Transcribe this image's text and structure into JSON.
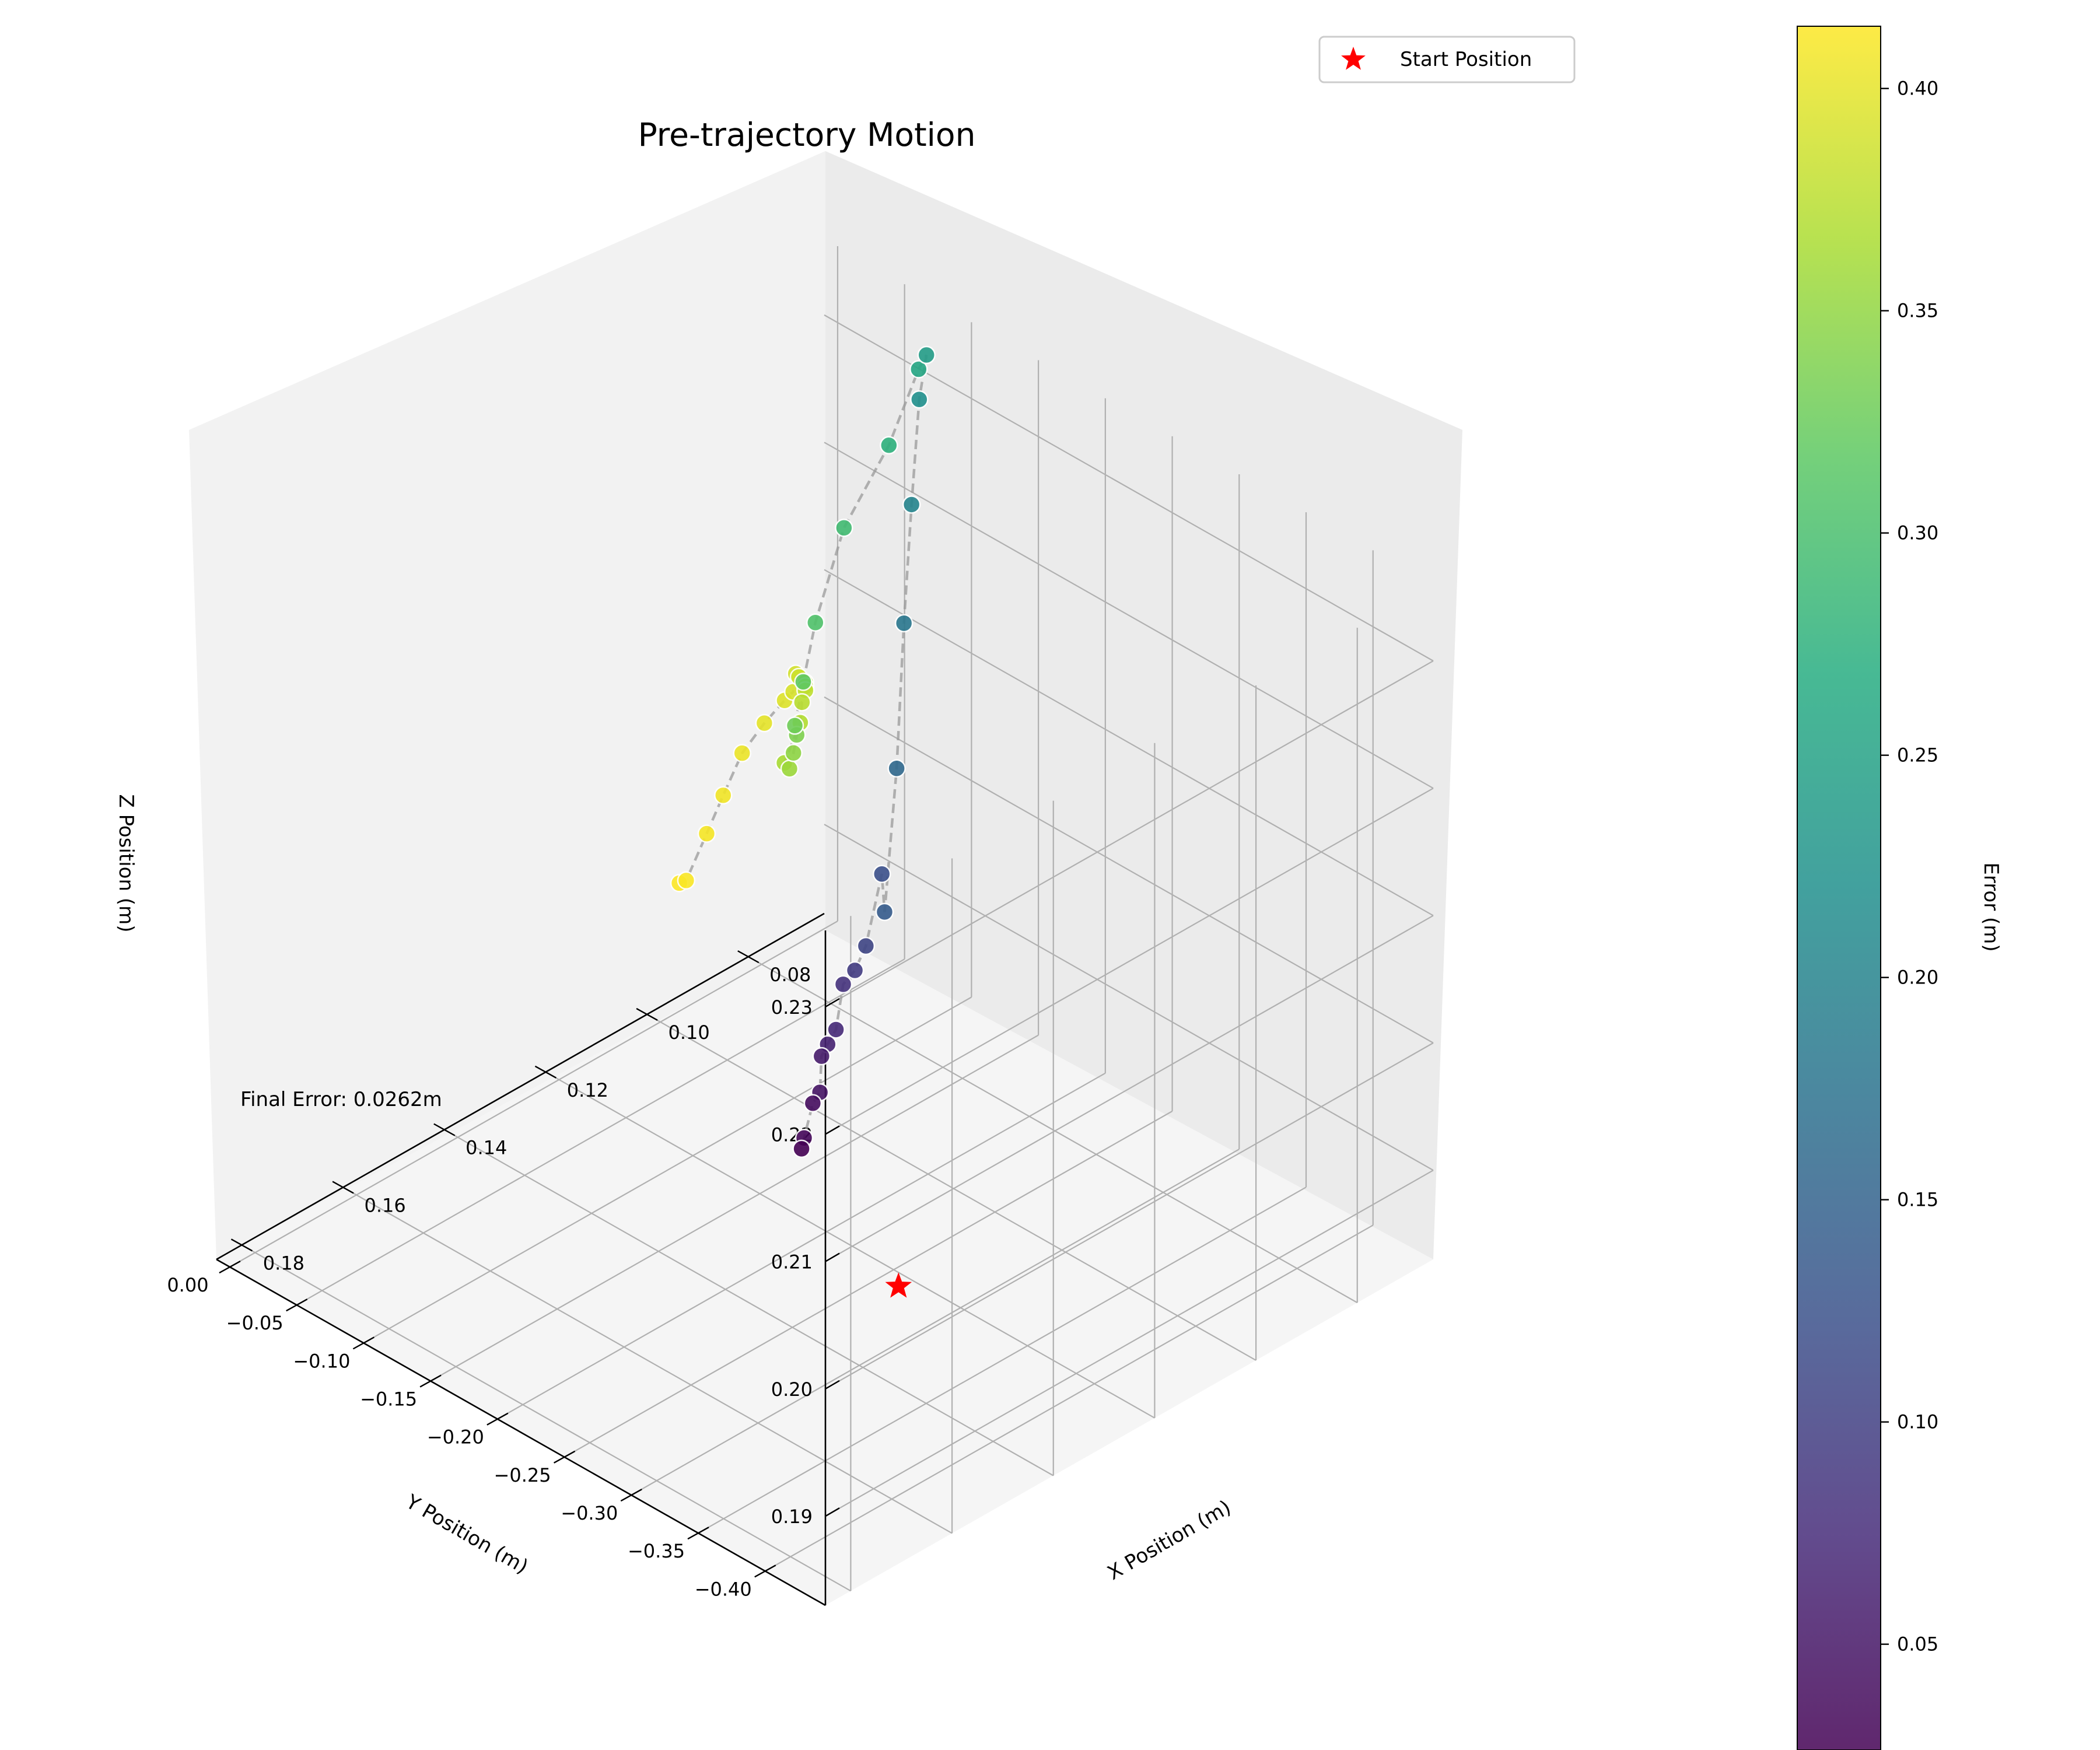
{
  "chart_data": {
    "type": "scatter",
    "projection": "3d",
    "title": "Pre-trajectory Motion",
    "xlabel": "X Position (m)",
    "ylabel": "Y Position (m)",
    "zlabel": "Z Position (m)",
    "xlim": [
      0.065,
      0.185
    ],
    "ylim": [
      -0.445,
      0.01
    ],
    "zlim": [
      0.183,
      0.236
    ],
    "xticks": [
      0.08,
      0.1,
      0.12,
      0.14,
      0.16,
      0.18
    ],
    "yticks": [
      -0.4,
      -0.35,
      -0.3,
      -0.25,
      -0.2,
      -0.15,
      -0.1,
      -0.05,
      0.0
    ],
    "zticks": [
      0.19,
      0.2,
      0.21,
      0.22,
      0.23
    ],
    "xtick_labels": [
      "0.08",
      "0.10",
      "0.12",
      "0.14",
      "0.16",
      "0.18"
    ],
    "ytick_labels": [
      "−0.40",
      "−0.35",
      "−0.30",
      "−0.25",
      "−0.20",
      "−0.15",
      "−0.10",
      "−0.05",
      "0.00"
    ],
    "ztick_labels": [
      "0.19",
      "0.20",
      "0.21",
      "0.22",
      "0.23"
    ],
    "grid": true,
    "legend": {
      "location": "top-right",
      "entries": [
        "Start Position"
      ]
    },
    "colorbar": {
      "label": "Error (m)",
      "colormap": "viridis",
      "range": [
        0.0262,
        0.414
      ],
      "ticks": [
        0.05,
        0.1,
        0.15,
        0.2,
        0.25,
        0.3,
        0.35,
        0.4
      ],
      "tick_labels": [
        "0.05",
        "0.10",
        "0.15",
        "0.20",
        "0.25",
        "0.30",
        "0.35",
        "0.40"
      ]
    },
    "annotation": "Final Error: 0.0262m",
    "start_marker": {
      "x": 0.16,
      "y": -0.405,
      "z": 0.2,
      "label": "Start Position",
      "color": "#ff0000"
    },
    "trajectory": [
      {
        "x": 0.0948,
        "y": 0.0055,
        "z": 0.1924,
        "error": 0.414
      },
      {
        "x": 0.0941,
        "y": 0.003,
        "z": 0.1926,
        "error": 0.412
      },
      {
        "x": 0.0917,
        "y": -0.0032,
        "z": 0.1961,
        "error": 0.41
      },
      {
        "x": 0.0896,
        "y": -0.0076,
        "z": 0.1989,
        "error": 0.407
      },
      {
        "x": 0.0866,
        "y": -0.0104,
        "z": 0.2017,
        "error": 0.404
      },
      {
        "x": 0.0834,
        "y": -0.0149,
        "z": 0.2036,
        "error": 0.4
      },
      {
        "x": 0.081,
        "y": -0.0209,
        "z": 0.2052,
        "error": 0.396
      },
      {
        "x": 0.0802,
        "y": -0.0243,
        "z": 0.2059,
        "error": 0.392
      },
      {
        "x": 0.0799,
        "y": -0.0251,
        "z": 0.2073,
        "error": 0.389
      },
      {
        "x": 0.0806,
        "y": -0.0301,
        "z": 0.2075,
        "error": 0.386
      },
      {
        "x": 0.0807,
        "y": -0.0352,
        "z": 0.2074,
        "error": 0.383
      },
      {
        "x": 0.0816,
        "y": -0.0387,
        "z": 0.2075,
        "error": 0.38
      },
      {
        "x": 0.0825,
        "y": -0.0422,
        "z": 0.2076,
        "error": 0.377
      },
      {
        "x": 0.0838,
        "y": -0.0445,
        "z": 0.2071,
        "error": 0.374
      },
      {
        "x": 0.0853,
        "y": -0.0489,
        "z": 0.2061,
        "error": 0.37
      },
      {
        "x": 0.0881,
        "y": -0.0476,
        "z": 0.2035,
        "error": 0.364
      },
      {
        "x": 0.0884,
        "y": -0.0526,
        "z": 0.2034,
        "error": 0.357
      },
      {
        "x": 0.0877,
        "y": -0.0529,
        "z": 0.2045,
        "error": 0.348
      },
      {
        "x": 0.0869,
        "y": -0.0523,
        "z": 0.2057,
        "error": 0.338
      },
      {
        "x": 0.0868,
        "y": -0.0505,
        "z": 0.2063,
        "error": 0.329
      },
      {
        "x": 0.085,
        "y": -0.05,
        "z": 0.2093,
        "error": 0.318
      },
      {
        "x": 0.0839,
        "y": -0.0549,
        "z": 0.214,
        "error": 0.306
      },
      {
        "x": 0.081,
        "y": -0.0653,
        "z": 0.2214,
        "error": 0.293
      },
      {
        "x": 0.0766,
        "y": -0.0822,
        "z": 0.2279,
        "error": 0.275
      },
      {
        "x": 0.0744,
        "y": -0.0961,
        "z": 0.2342,
        "error": 0.258
      },
      {
        "x": 0.0769,
        "y": -0.1114,
        "z": 0.2368,
        "error": 0.241
      },
      {
        "x": 0.0829,
        "y": -0.1287,
        "z": 0.2357,
        "error": 0.222
      },
      {
        "x": 0.0893,
        "y": -0.1472,
        "z": 0.23,
        "error": 0.202
      },
      {
        "x": 0.0954,
        "y": -0.1646,
        "z": 0.2231,
        "error": 0.181
      },
      {
        "x": 0.1012,
        "y": -0.1811,
        "z": 0.214,
        "error": 0.16
      },
      {
        "x": 0.1072,
        "y": -0.1948,
        "z": 0.2049,
        "error": 0.14
      },
      {
        "x": 0.1106,
        "y": -0.2056,
        "z": 0.2093,
        "error": 0.122
      },
      {
        "x": 0.1165,
        "y": -0.216,
        "z": 0.2056,
        "error": 0.107
      },
      {
        "x": 0.1216,
        "y": -0.2271,
        "z": 0.2055,
        "error": 0.094
      },
      {
        "x": 0.1265,
        "y": -0.2369,
        "z": 0.2061,
        "error": 0.083
      },
      {
        "x": 0.1302,
        "y": -0.2455,
        "z": 0.2039,
        "error": 0.072
      },
      {
        "x": 0.1338,
        "y": -0.2529,
        "z": 0.204,
        "error": 0.064
      },
      {
        "x": 0.1367,
        "y": -0.2593,
        "z": 0.2041,
        "error": 0.055
      },
      {
        "x": 0.1387,
        "y": -0.2657,
        "z": 0.2021,
        "error": 0.047
      },
      {
        "x": 0.1413,
        "y": -0.2702,
        "z": 0.2021,
        "error": 0.04
      },
      {
        "x": 0.1442,
        "y": -0.2747,
        "z": 0.2003,
        "error": 0.033
      },
      {
        "x": 0.1459,
        "y": -0.2792,
        "z": 0.2001,
        "error": 0.0262
      }
    ]
  }
}
